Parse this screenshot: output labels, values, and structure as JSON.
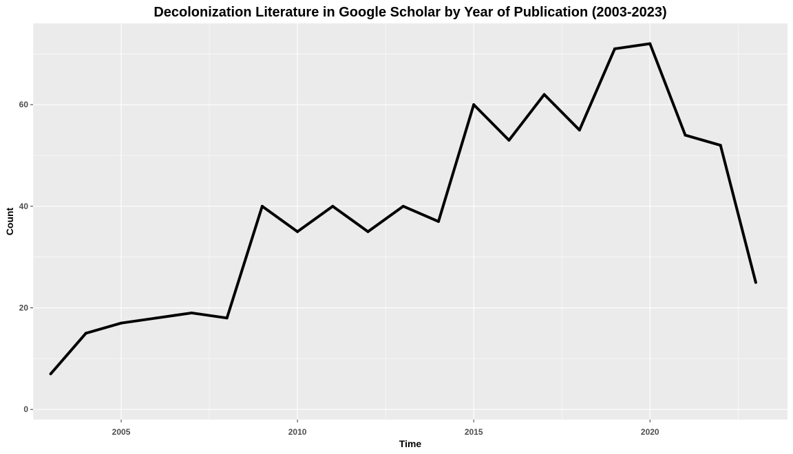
{
  "chart_data": {
    "type": "line",
    "title": "Decolonization Literature in Google Scholar by Year of Publication (2003-2023)",
    "xlabel": "Time",
    "ylabel": "Count",
    "x": [
      2003,
      2004,
      2005,
      2006,
      2007,
      2008,
      2009,
      2010,
      2011,
      2012,
      2013,
      2014,
      2015,
      2016,
      2017,
      2018,
      2019,
      2020,
      2021,
      2022,
      2023
    ],
    "series": [
      {
        "values": [
          7,
          15,
          17,
          18,
          19,
          18,
          40,
          35,
          40,
          35,
          40,
          37,
          60,
          53,
          62,
          55,
          71,
          72,
          54,
          52,
          25
        ],
        "color": "#000000"
      }
    ],
    "xlim": [
      2002.5,
      2023.9
    ],
    "ylim": [
      -2,
      76
    ],
    "xticks": [
      2005,
      2010,
      2015,
      2020
    ],
    "xtick_labels": [
      "2005",
      "2010",
      "2015",
      "2020"
    ],
    "yticks": [
      0,
      20,
      40,
      60
    ],
    "ytick_labels": [
      "0",
      "20",
      "40",
      "60"
    ],
    "grid": true,
    "legend": "none",
    "colors": {
      "panel_background": "#EBEBEB",
      "grid_line": "#FFFFFF",
      "line": "#000000",
      "tick_label": "#4D4D4D"
    }
  }
}
